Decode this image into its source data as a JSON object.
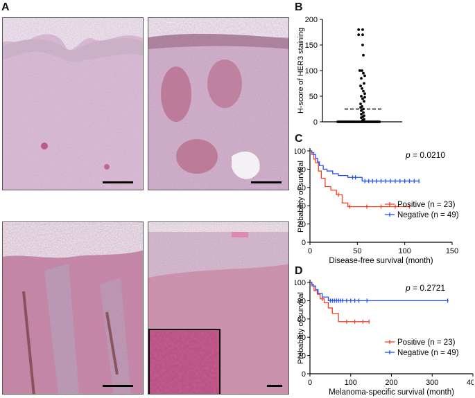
{
  "figure": {
    "panel_labels": {
      "a": "A",
      "b": "B",
      "c": "C",
      "d": "D"
    },
    "micrographs": [
      {
        "name": "micrograph-top-left",
        "tissue_color": "#d9b4cf",
        "stain_color": "#b2335f"
      },
      {
        "name": "micrograph-top-right",
        "tissue_color": "#cfb0c8",
        "stain_color": "#9e2145"
      },
      {
        "name": "micrograph-bottom-left",
        "tissue_color": "#c97fa0",
        "stain_color": "#6b2a2a"
      },
      {
        "name": "micrograph-bottom-right",
        "tissue_color": "#c98aa6",
        "stain_color": "#a23a62"
      }
    ]
  },
  "chart_data": [
    {
      "panel": "B",
      "type": "scatter",
      "xlabel": "",
      "ylabel": "H-score of HER3 staining",
      "ylim": [
        0,
        200
      ],
      "yticks": [
        "0",
        "50",
        "100",
        "150",
        "200"
      ],
      "median_line": 25,
      "points": [
        180,
        180,
        170,
        170,
        150,
        130,
        100,
        100,
        95,
        90,
        85,
        75,
        70,
        65,
        60,
        55,
        50,
        48,
        45,
        40,
        35,
        30,
        28,
        25,
        22,
        18,
        15,
        12,
        10,
        8,
        5,
        3,
        0,
        0,
        0,
        0,
        0,
        0,
        0,
        0,
        0,
        0,
        0,
        0,
        0,
        0,
        0,
        0,
        0,
        0,
        0,
        0,
        0,
        0,
        0,
        0,
        0,
        0,
        0,
        0,
        0,
        0,
        0,
        0,
        0,
        0,
        0,
        0,
        0,
        0,
        0,
        0
      ],
      "color": "#000000"
    },
    {
      "panel": "C",
      "type": "line",
      "xlabel": "Disease-free survival (month)",
      "ylabel": "Probability of survival",
      "xlim": [
        0,
        150
      ],
      "ylim": [
        0,
        100
      ],
      "xticks": [
        "0",
        "50",
        "100",
        "150"
      ],
      "yticks": [
        "0",
        "20",
        "40",
        "60",
        "80",
        "100"
      ],
      "annotation_prefix": "p",
      "annotation_value": " = 0.0210",
      "series": [
        {
          "name": "Positive (n = 23)",
          "color": "#ff3b1f",
          "x": [
            0,
            2,
            4,
            6,
            9,
            12,
            16,
            22,
            28,
            34,
            40,
            105
          ],
          "y": [
            100,
            96,
            91,
            87,
            78,
            70,
            61,
            57,
            52,
            43,
            39,
            39
          ],
          "censored": [
            [
              30,
              52
            ],
            [
              42,
              39
            ],
            [
              60,
              39
            ],
            [
              75,
              39
            ],
            [
              90,
              39
            ],
            [
              105,
              39
            ]
          ]
        },
        {
          "name": "Negative (n = 49)",
          "color": "#1f4fff",
          "x": [
            0,
            2,
            4,
            6,
            8,
            10,
            14,
            18,
            24,
            30,
            40,
            55,
            115
          ],
          "y": [
            100,
            98,
            96,
            92,
            88,
            84,
            80,
            78,
            75,
            73,
            71,
            67,
            67
          ],
          "censored": [
            [
              45,
              71
            ],
            [
              48,
              71
            ],
            [
              58,
              67
            ],
            [
              62,
              67
            ],
            [
              66,
              67
            ],
            [
              70,
              67
            ],
            [
              75,
              67
            ],
            [
              80,
              67
            ],
            [
              85,
              67
            ],
            [
              90,
              67
            ],
            [
              95,
              67
            ],
            [
              100,
              67
            ],
            [
              105,
              67
            ],
            [
              110,
              67
            ],
            [
              115,
              67
            ]
          ]
        }
      ]
    },
    {
      "panel": "D",
      "type": "line",
      "xlabel": "Melanoma-specific survival (month)",
      "ylabel": "Probability of survival",
      "xlim": [
        0,
        400
      ],
      "ylim": [
        0,
        100
      ],
      "xticks": [
        "0",
        "100",
        "200",
        "300",
        "400"
      ],
      "yticks": [
        "0",
        "20",
        "40",
        "60",
        "80",
        "100"
      ],
      "annotation_prefix": "p",
      "annotation_value": " = 0.2721",
      "series": [
        {
          "name": "Positive (n = 23)",
          "color": "#ff3b1f",
          "x": [
            0,
            5,
            10,
            18,
            25,
            35,
            45,
            55,
            70,
            145
          ],
          "y": [
            100,
            96,
            91,
            87,
            82,
            78,
            72,
            66,
            57,
            57
          ],
          "censored": [
            [
              30,
              82
            ],
            [
              90,
              57
            ],
            [
              110,
              57
            ],
            [
              130,
              57
            ],
            [
              145,
              57
            ]
          ]
        },
        {
          "name": "Negative (n = 49)",
          "color": "#1f4fff",
          "x": [
            0,
            4,
            8,
            14,
            20,
            30,
            45,
            340
          ],
          "y": [
            100,
            98,
            96,
            92,
            88,
            84,
            80,
            80
          ],
          "censored": [
            [
              50,
              80
            ],
            [
              55,
              80
            ],
            [
              60,
              80
            ],
            [
              65,
              80
            ],
            [
              70,
              80
            ],
            [
              75,
              80
            ],
            [
              80,
              80
            ],
            [
              90,
              80
            ],
            [
              100,
              80
            ],
            [
              110,
              80
            ],
            [
              120,
              80
            ],
            [
              140,
              80
            ],
            [
              338,
              80
            ]
          ]
        }
      ]
    }
  ]
}
